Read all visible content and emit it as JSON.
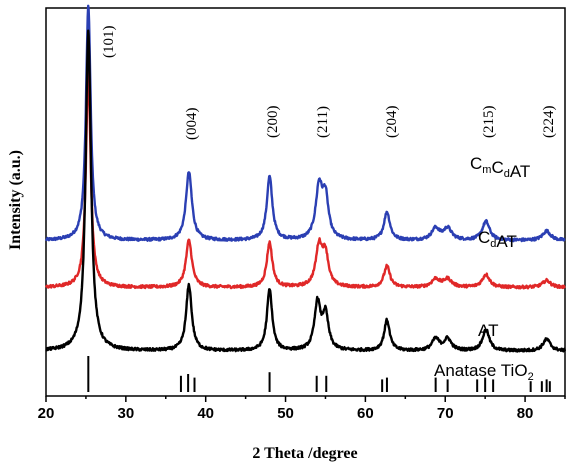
{
  "chart_data": {
    "type": "line",
    "title": "",
    "xlabel": "2 Theta /degree",
    "ylabel": "Intensity (a.u.)",
    "xlim": [
      20,
      85
    ],
    "x_ticks": [
      20,
      30,
      40,
      50,
      60,
      70,
      80
    ],
    "y_ticks_visible": false,
    "grid": false,
    "legend": "none; series labeled inline at right",
    "peak_labels": [
      {
        "text": "(101)",
        "x": 25.3
      },
      {
        "text": "(004)",
        "x": 37.8
      },
      {
        "text": "(200)",
        "x": 48.0
      },
      {
        "text": "(211)",
        "x": 54.5
      },
      {
        "text": "(204)",
        "x": 62.7
      },
      {
        "text": "(215)",
        "x": 75.0
      },
      {
        "text": "(224)",
        "x": 82.7
      }
    ],
    "series": [
      {
        "name": "CmCdAT",
        "label_main": [
          "C",
          "C",
          "AT"
        ],
        "label_subs": [
          "m",
          "d"
        ],
        "color": "#2b3fb3",
        "baseline": 0.62,
        "peaks": [
          {
            "x": 25.3,
            "h": 1.0,
            "w": 0.35
          },
          {
            "x": 37.9,
            "h": 0.29,
            "w": 0.45
          },
          {
            "x": 48.0,
            "h": 0.27,
            "w": 0.42
          },
          {
            "x": 54.2,
            "h": 0.22,
            "w": 0.5
          },
          {
            "x": 55.0,
            "h": 0.17,
            "w": 0.45
          },
          {
            "x": 62.7,
            "h": 0.12,
            "w": 0.45
          },
          {
            "x": 68.8,
            "h": 0.05,
            "w": 0.6
          },
          {
            "x": 70.3,
            "h": 0.05,
            "w": 0.6
          },
          {
            "x": 75.1,
            "h": 0.08,
            "w": 0.55
          },
          {
            "x": 82.7,
            "h": 0.04,
            "w": 0.6
          }
        ]
      },
      {
        "name": "CdAT",
        "label_main": [
          "C",
          "AT"
        ],
        "label_subs": [
          "d"
        ],
        "color": "#e02828",
        "baseline": 0.42,
        "peaks": [
          {
            "x": 25.3,
            "h": 0.92,
            "w": 0.35
          },
          {
            "x": 37.9,
            "h": 0.2,
            "w": 0.45
          },
          {
            "x": 48.0,
            "h": 0.19,
            "w": 0.42
          },
          {
            "x": 54.2,
            "h": 0.17,
            "w": 0.5
          },
          {
            "x": 55.0,
            "h": 0.13,
            "w": 0.45
          },
          {
            "x": 62.7,
            "h": 0.09,
            "w": 0.45
          },
          {
            "x": 68.8,
            "h": 0.035,
            "w": 0.6
          },
          {
            "x": 70.3,
            "h": 0.035,
            "w": 0.6
          },
          {
            "x": 75.1,
            "h": 0.055,
            "w": 0.55
          },
          {
            "x": 82.7,
            "h": 0.03,
            "w": 0.6
          }
        ]
      },
      {
        "name": "AT",
        "label_main": [
          "AT"
        ],
        "label_subs": [],
        "color": "#000000",
        "baseline": 0.15,
        "peaks": [
          {
            "x": 25.3,
            "h": 1.36,
            "w": 0.4
          },
          {
            "x": 37.9,
            "h": 0.28,
            "w": 0.42
          },
          {
            "x": 48.0,
            "h": 0.26,
            "w": 0.4
          },
          {
            "x": 54.0,
            "h": 0.2,
            "w": 0.45
          },
          {
            "x": 55.0,
            "h": 0.15,
            "w": 0.45
          },
          {
            "x": 62.7,
            "h": 0.13,
            "w": 0.42
          },
          {
            "x": 68.8,
            "h": 0.05,
            "w": 0.55
          },
          {
            "x": 70.3,
            "h": 0.05,
            "w": 0.55
          },
          {
            "x": 75.1,
            "h": 0.09,
            "w": 0.5
          },
          {
            "x": 82.7,
            "h": 0.05,
            "w": 0.55
          }
        ]
      }
    ],
    "reference": {
      "name": "Anatase TiO2",
      "label_main": "Anatase TiO",
      "label_sub": "2",
      "lines": [
        {
          "x": 25.3,
          "h": 1.0
        },
        {
          "x": 36.9,
          "h": 0.45
        },
        {
          "x": 37.8,
          "h": 0.5
        },
        {
          "x": 38.6,
          "h": 0.4
        },
        {
          "x": 48.0,
          "h": 0.55
        },
        {
          "x": 53.9,
          "h": 0.45
        },
        {
          "x": 55.1,
          "h": 0.45
        },
        {
          "x": 62.1,
          "h": 0.35
        },
        {
          "x": 62.7,
          "h": 0.4
        },
        {
          "x": 68.8,
          "h": 0.4
        },
        {
          "x": 70.3,
          "h": 0.35
        },
        {
          "x": 74.0,
          "h": 0.35
        },
        {
          "x": 75.0,
          "h": 0.4
        },
        {
          "x": 76.0,
          "h": 0.35
        },
        {
          "x": 80.7,
          "h": 0.3
        },
        {
          "x": 82.1,
          "h": 0.3
        },
        {
          "x": 82.7,
          "h": 0.35
        },
        {
          "x": 83.1,
          "h": 0.3
        }
      ]
    }
  }
}
